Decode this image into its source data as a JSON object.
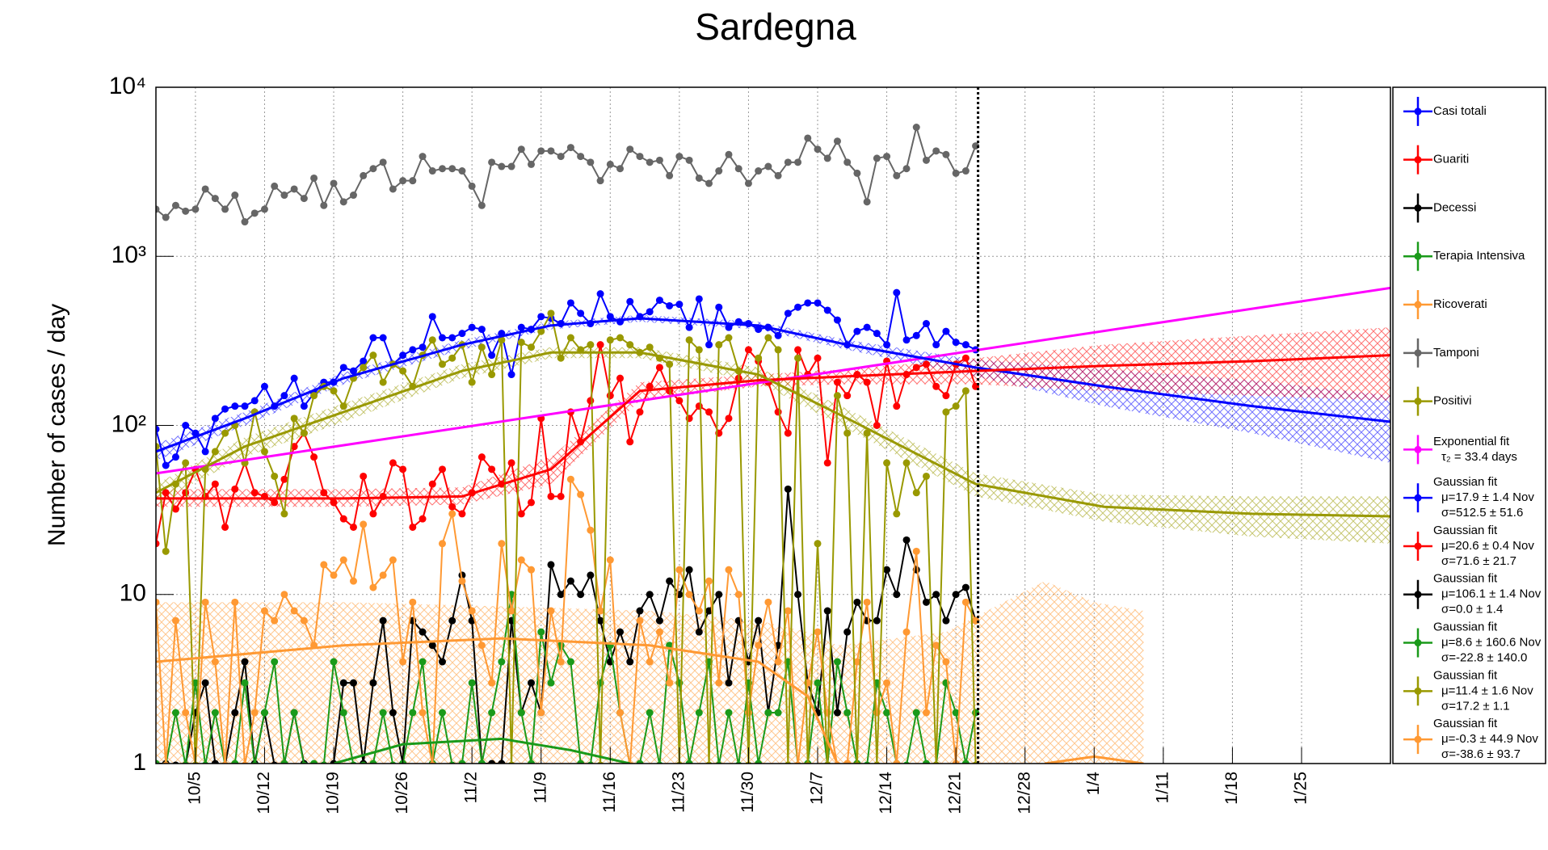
{
  "chart_data": {
    "type": "line",
    "title": "Sardegna",
    "y_label": "Number of cases / day",
    "log_y": true,
    "grid": true,
    "ylim": [
      1,
      10000
    ],
    "yticks": [
      1,
      10,
      {
        "value": 100,
        "label": "10²"
      },
      {
        "value": 1000,
        "label": "10³"
      },
      {
        "value": 10000,
        "label": "10⁴"
      }
    ],
    "xlim": [
      "10/1",
      "2/3"
    ],
    "xticks": [
      "10/5",
      "10/12",
      "10/19",
      "10/26",
      "11/2",
      "11/9",
      "11/16",
      "11/23",
      "11/30",
      "12/7",
      "12/14",
      "12/21",
      "12/28",
      "1/4",
      "1/11",
      "1/18",
      "1/25"
    ],
    "x": [
      "10/1",
      "10/2",
      "10/3",
      "10/4",
      "10/5",
      "10/6",
      "10/7",
      "10/8",
      "10/9",
      "10/10",
      "10/11",
      "10/12",
      "10/13",
      "10/14",
      "10/15",
      "10/16",
      "10/17",
      "10/18",
      "10/19",
      "10/20",
      "10/21",
      "10/22",
      "10/23",
      "10/24",
      "10/25",
      "10/26",
      "10/27",
      "10/28",
      "10/29",
      "10/30",
      "10/31",
      "11/1",
      "11/2",
      "11/3",
      "11/4",
      "11/5",
      "11/6",
      "11/7",
      "11/8",
      "11/9",
      "11/10",
      "11/11",
      "11/12",
      "11/13",
      "11/14",
      "11/15",
      "11/16",
      "11/17",
      "11/18",
      "11/19",
      "11/20",
      "11/21",
      "11/22",
      "11/23",
      "11/24",
      "11/25",
      "11/26",
      "11/27",
      "11/28",
      "11/29",
      "11/30",
      "12/1",
      "12/2",
      "12/3",
      "12/4",
      "12/5",
      "12/6",
      "12/7",
      "12/8",
      "12/9",
      "12/10",
      "12/11",
      "12/12",
      "12/13",
      "12/14",
      "12/15",
      "12/16",
      "12/17",
      "12/18",
      "12/19",
      "12/20",
      "12/21",
      "12/22",
      "12/23"
    ],
    "series": [
      {
        "name": "Casi totali",
        "color": "#0000ff",
        "values": [
          95,
          58,
          65,
          100,
          90,
          70,
          110,
          125,
          130,
          130,
          140,
          170,
          130,
          150,
          190,
          130,
          155,
          180,
          180,
          220,
          210,
          240,
          330,
          330,
          230,
          260,
          280,
          290,
          440,
          330,
          330,
          350,
          380,
          370,
          260,
          350,
          200,
          380,
          370,
          440,
          430,
          400,
          530,
          460,
          400,
          600,
          440,
          410,
          540,
          440,
          470,
          550,
          510,
          520,
          380,
          560,
          300,
          500,
          380,
          410,
          400,
          370,
          380,
          340,
          460,
          500,
          530,
          530,
          480,
          420,
          300,
          360,
          380,
          350,
          300,
          610,
          320,
          340,
          400,
          300,
          360,
          310,
          300,
          280
        ]
      },
      {
        "name": "Guariti",
        "color": "#ff0000",
        "values": [
          20,
          40,
          32,
          40,
          55,
          38,
          45,
          25,
          42,
          60,
          40,
          38,
          35,
          48,
          75,
          90,
          65,
          40,
          35,
          28,
          25,
          50,
          30,
          38,
          60,
          55,
          25,
          28,
          45,
          55,
          33,
          30,
          40,
          65,
          55,
          45,
          60,
          30,
          35,
          110,
          38,
          38,
          120,
          80,
          140,
          300,
          150,
          190,
          80,
          120,
          170,
          220,
          160,
          140,
          110,
          130,
          120,
          90,
          110,
          190,
          280,
          240,
          180,
          120,
          90,
          280,
          200,
          250,
          60,
          180,
          150,
          200,
          180,
          100,
          240,
          130,
          200,
          220,
          230,
          170,
          150,
          230,
          250,
          170
        ]
      },
      {
        "name": "Decessi",
        "color": "#000000",
        "values": [
          1,
          1,
          0,
          0,
          2,
          3,
          1,
          0,
          2,
          4,
          1,
          2,
          0,
          1,
          2,
          1,
          0,
          0,
          1,
          3,
          3,
          1,
          3,
          7,
          2,
          1,
          7,
          6,
          5,
          4,
          7,
          13,
          7,
          1,
          1,
          1,
          7,
          2,
          3,
          2,
          15,
          10,
          12,
          10,
          13,
          7,
          4,
          6,
          4,
          8,
          10,
          7,
          12,
          10,
          14,
          6,
          8,
          10,
          3,
          7,
          4,
          7,
          2,
          5,
          42,
          10,
          3,
          2,
          8,
          2,
          6,
          9,
          7,
          7,
          14,
          10,
          21,
          14,
          9,
          10,
          7,
          10,
          11,
          7
        ]
      },
      {
        "name": "Terapia Intensiva",
        "color": "#1a9a1a",
        "values": [
          1,
          0,
          2,
          0,
          3,
          0,
          2,
          0,
          1,
          3,
          0,
          2,
          4,
          1,
          2,
          0,
          1,
          0,
          4,
          2,
          0,
          0,
          1,
          2,
          0,
          1,
          2,
          4,
          1,
          2,
          0,
          1,
          3,
          1,
          2,
          4,
          10,
          2,
          1,
          6,
          3,
          5,
          4,
          1,
          0,
          3,
          5,
          2,
          0,
          1,
          2,
          0,
          5,
          3,
          1,
          2,
          4,
          0,
          2,
          0,
          3,
          1,
          2,
          2,
          4,
          0,
          1,
          3,
          0,
          4,
          2,
          1,
          0,
          3,
          2,
          1,
          0,
          2,
          1,
          0,
          3,
          2,
          1,
          2
        ]
      },
      {
        "name": "Ricoverati",
        "color": "#ff9933",
        "values": [
          9,
          0,
          7,
          2,
          0,
          9,
          4,
          0,
          9,
          0,
          2,
          8,
          7,
          10,
          8,
          7,
          5,
          15,
          13,
          16,
          12,
          26,
          11,
          13,
          16,
          4,
          9,
          2,
          0,
          20,
          30,
          12,
          8,
          5,
          3,
          20,
          8,
          16,
          14,
          2,
          8,
          4,
          48,
          39,
          24,
          8,
          16,
          2,
          0,
          7,
          4,
          6,
          3,
          14,
          10,
          8,
          12,
          3,
          14,
          10,
          2,
          5,
          9,
          4,
          8,
          0,
          3,
          6,
          2,
          0,
          1,
          4,
          9,
          2,
          3,
          1,
          6,
          18,
          2,
          5,
          4,
          1,
          9,
          7
        ]
      },
      {
        "name": "Tamponi",
        "color": "#666666",
        "values": [
          1900,
          1700,
          2000,
          1850,
          1900,
          2500,
          2200,
          1900,
          2300,
          1600,
          1800,
          1900,
          2600,
          2300,
          2500,
          2200,
          2900,
          2000,
          2700,
          2100,
          2300,
          3000,
          3300,
          3600,
          2500,
          2800,
          2800,
          3900,
          3200,
          3300,
          3300,
          3200,
          2600,
          2000,
          3600,
          3400,
          3400,
          4300,
          3500,
          4200,
          4200,
          3900,
          4400,
          3900,
          3600,
          2800,
          3500,
          3300,
          4300,
          3900,
          3600,
          3700,
          3000,
          3900,
          3700,
          2900,
          2700,
          3200,
          4000,
          3300,
          2700,
          3200,
          3400,
          3000,
          3600,
          3600,
          5000,
          4300,
          3800,
          4800,
          3600,
          3100,
          2100,
          3800,
          3900,
          3000,
          3300,
          5800,
          3700,
          4200,
          4000,
          3100,
          3200,
          4500
        ]
      },
      {
        "name": "Positivi",
        "color": "#999900",
        "values": [
          75,
          18,
          45,
          60,
          0,
          55,
          70,
          90,
          100,
          60,
          120,
          70,
          50,
          30,
          110,
          90,
          150,
          170,
          160,
          130,
          190,
          220,
          260,
          180,
          230,
          210,
          170,
          260,
          320,
          230,
          250,
          300,
          180,
          290,
          200,
          320,
          0,
          310,
          290,
          360,
          460,
          250,
          330,
          280,
          300,
          0,
          320,
          330,
          300,
          270,
          290,
          250,
          230,
          0,
          320,
          280,
          0,
          300,
          330,
          210,
          0,
          250,
          330,
          280,
          0,
          250,
          0,
          20,
          0,
          150,
          90,
          0,
          90,
          0,
          60,
          30,
          60,
          40,
          50,
          0,
          120,
          130,
          160,
          0
        ]
      }
    ],
    "fits": [
      {
        "name": "Exponential fit",
        "params": [
          "τ₂ = 33.4 days"
        ],
        "color": "#ff00ff",
        "x": [
          "10/1",
          "2/3"
        ],
        "values": [
          52,
          650
        ]
      },
      {
        "name": "Gaussian fit",
        "params": [
          "μ=17.9 ± 1.4 Nov",
          "σ=512.5 ± 51.6"
        ],
        "color": "#0000ff",
        "x": [
          "10/1",
          "10/10",
          "10/20",
          "11/1",
          "11/10",
          "11/19",
          "12/1",
          "12/10",
          "12/23",
          "1/5",
          "1/20",
          "2/3"
        ],
        "values": [
          70,
          110,
          190,
          300,
          390,
          430,
          390,
          300,
          220,
          170,
          130,
          105
        ],
        "band": {
          "low": [
            62,
            100,
            175,
            280,
            370,
            410,
            370,
            280,
            195,
            130,
            90,
            60
          ],
          "high": [
            78,
            120,
            205,
            320,
            410,
            450,
            410,
            320,
            245,
            215,
            185,
            150
          ]
        }
      },
      {
        "name": "Gaussian fit",
        "params": [
          "μ=20.6 ± 0.4 Nov",
          "σ=71.6 ± 21.7"
        ],
        "color": "#ff0000",
        "x": [
          "10/1",
          "10/10",
          "10/20",
          "11/1",
          "11/10",
          "11/19",
          "12/1",
          "12/10",
          "12/23",
          "1/5",
          "1/20",
          "2/3"
        ],
        "values": [
          37,
          37,
          37,
          38,
          55,
          160,
          185,
          195,
          210,
          225,
          240,
          260
        ],
        "band": {
          "low": [
            33,
            33,
            33,
            34,
            45,
            140,
            170,
            175,
            175,
            160,
            150,
            140
          ],
          "high": [
            42,
            42,
            42,
            43,
            65,
            180,
            200,
            215,
            250,
            300,
            340,
            380
          ]
        }
      },
      {
        "name": "Gaussian fit",
        "params": [
          "μ=106.1 ± 1.4 Nov",
          "σ=0.0 ± 1.4"
        ],
        "color": "#000000"
      },
      {
        "name": "Gaussian fit",
        "params": [
          "μ=8.6 ± 160.6 Nov",
          "σ=-22.8 ± 140.0"
        ],
        "color": "#1a9a1a",
        "x": [
          "10/19",
          "10/26",
          "11/5",
          "11/12",
          "11/18"
        ],
        "values": [
          1,
          1.3,
          1.4,
          1.2,
          1
        ]
      },
      {
        "name": "Gaussian fit",
        "params": [
          "μ=11.4 ± 1.6 Nov",
          "σ=17.2 ± 1.1"
        ],
        "color": "#999900",
        "x": [
          "10/1",
          "10/10",
          "10/20",
          "11/1",
          "11/10",
          "11/19",
          "12/1",
          "12/10",
          "12/23",
          "1/5",
          "1/20",
          "2/3"
        ],
        "values": [
          40,
          75,
          120,
          210,
          270,
          270,
          200,
          110,
          45,
          33,
          30,
          29
        ],
        "band": {
          "low": [
            35,
            65,
            105,
            190,
            250,
            250,
            180,
            95,
            38,
            27,
            22,
            20
          ],
          "high": [
            45,
            85,
            135,
            230,
            290,
            290,
            220,
            125,
            52,
            39,
            38,
            38
          ]
        }
      },
      {
        "name": "Gaussian fit",
        "params": [
          "μ=-0.3 ± 44.9 Nov",
          "σ=-38.6 ± 93.7"
        ],
        "color": "#ff9933",
        "x": [
          "10/1",
          "10/20",
          "11/5",
          "11/20",
          "12/1",
          "12/6",
          "12/9",
          "12/20",
          "12/30",
          "1/4",
          "1/9"
        ],
        "values": [
          4,
          5,
          5.5,
          5,
          4,
          2.5,
          1,
          null,
          1,
          1.1,
          1
        ],
        "band": {
          "low": [
            1,
            1,
            1,
            1,
            1,
            1,
            1,
            1,
            1,
            1,
            1
          ],
          "high": [
            9,
            9,
            8.5,
            8,
            7,
            6,
            5,
            6,
            12,
            9,
            8
          ]
        }
      }
    ]
  }
}
